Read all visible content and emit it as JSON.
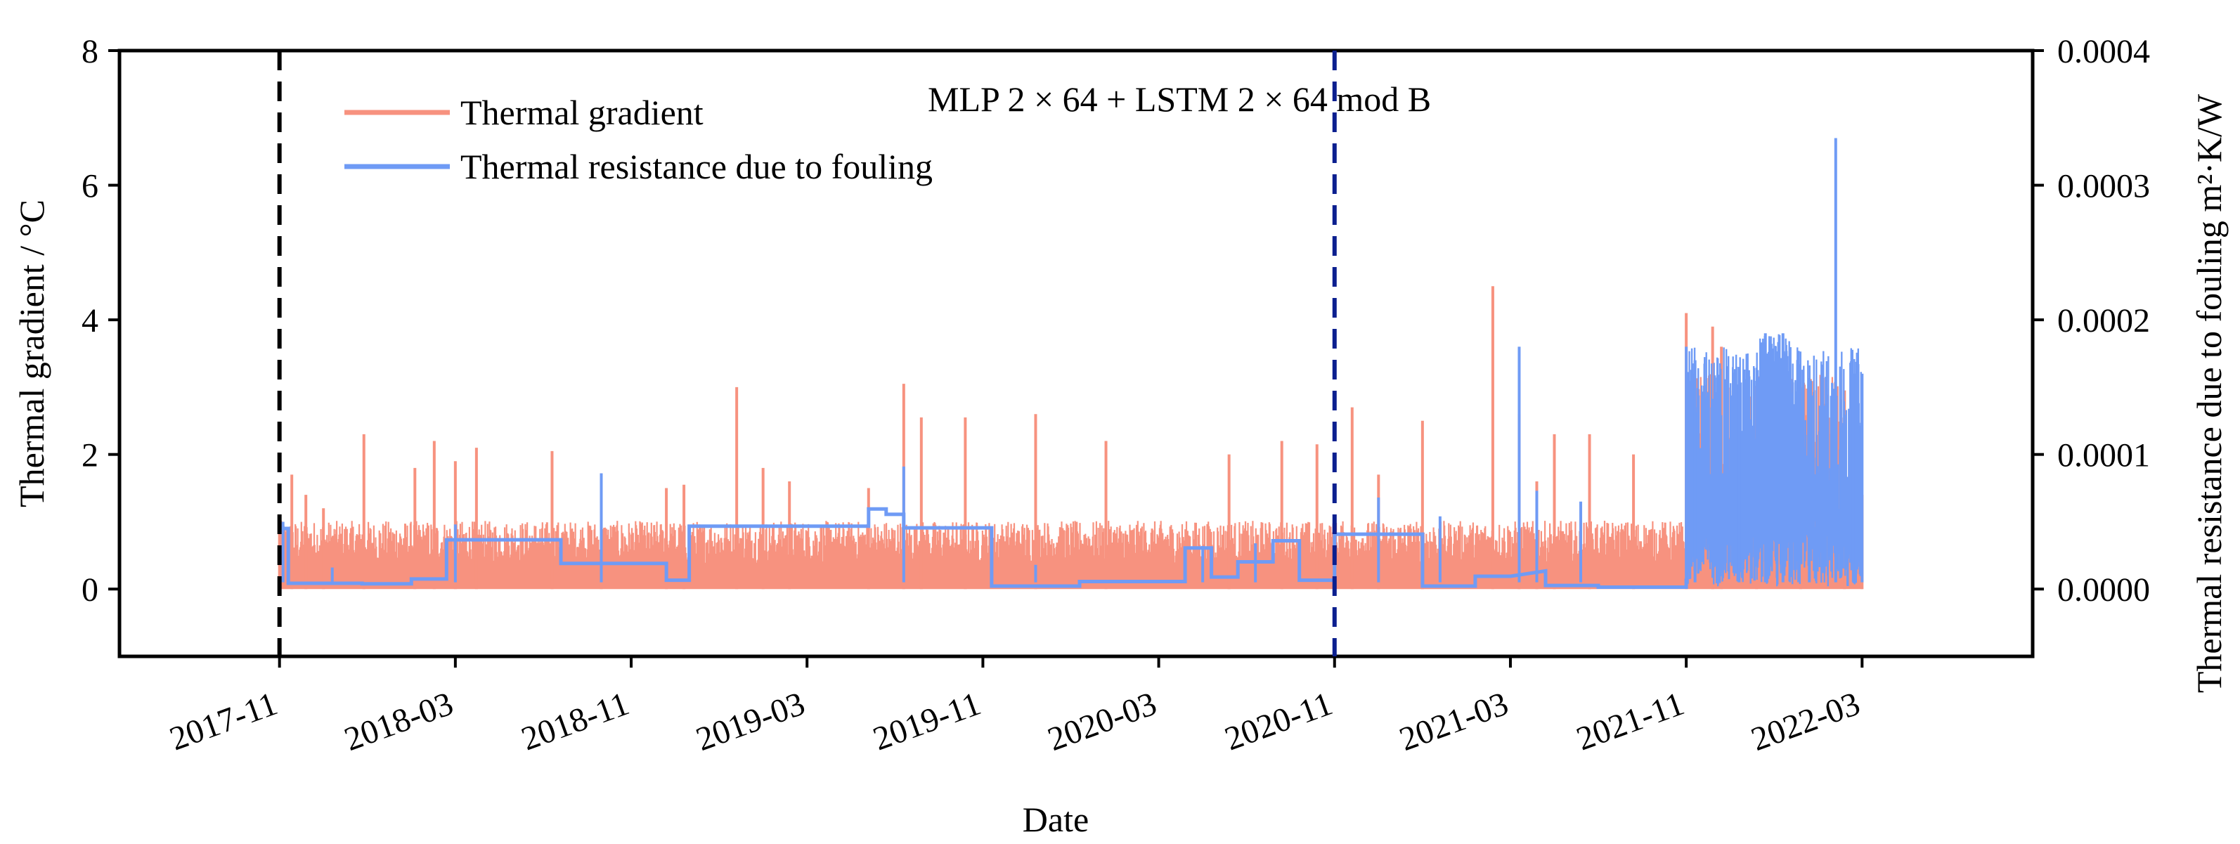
{
  "chart_data": {
    "type": "line",
    "title": "",
    "annotation": "MLP 2 × 64 + LSTM 2 × 64 mod B",
    "xlabel": "Date",
    "ylabel_left": "Thermal gradient / °C",
    "ylabel_right": "Thermal resistance due to fouling m²·K/W",
    "x_ticks": [
      "2017-11",
      "2018-03",
      "2018-11",
      "2019-03",
      "2019-11",
      "2020-03",
      "2020-11",
      "2021-03",
      "2021-11",
      "2022-03"
    ],
    "x_range": [
      -0.91,
      9.97
    ],
    "ylim_left": [
      -1,
      8
    ],
    "ylim_right": [
      -5e-05,
      0.0004
    ],
    "y_ticks_left": [
      "0",
      "2",
      "4",
      "6",
      "8"
    ],
    "y_ticks_right": [
      "0.0000",
      "0.0001",
      "0.0002",
      "0.0003",
      "0.0004"
    ],
    "grid": false,
    "legend_position": "top-left",
    "vertical_lines": [
      {
        "x": 0,
        "style": "dashed",
        "color": "#000000"
      },
      {
        "x": 6.0,
        "style": "dashed",
        "color": "#0b1f8f"
      }
    ],
    "colors": {
      "gradient": "#f7927f",
      "resistance": "#6f9bf5"
    },
    "series": [
      {
        "name": "Thermal gradient",
        "axis": "left",
        "base_level": 0.7,
        "x": [
          0.0,
          0.07,
          0.15,
          0.25,
          0.48,
          0.77,
          0.88,
          1.0,
          1.12,
          1.55,
          1.83,
          2.2,
          2.3,
          2.6,
          2.75,
          2.9,
          3.35,
          3.55,
          3.65,
          3.9,
          4.3,
          4.7,
          5.4,
          5.7,
          5.9,
          6.0,
          6.1,
          6.25,
          6.5,
          6.9,
          7.05,
          7.15,
          7.25,
          7.45,
          7.7,
          8.0,
          8.15,
          8.2,
          8.4,
          8.65,
          8.9,
          9.0
        ],
        "peaks": [
          1.0,
          1.7,
          1.4,
          1.2,
          2.3,
          1.8,
          2.2,
          1.9,
          2.1,
          2.05,
          1.6,
          1.5,
          1.55,
          3.0,
          1.8,
          1.6,
          1.5,
          3.05,
          2.55,
          2.55,
          2.6,
          2.2,
          2.0,
          2.2,
          2.15,
          0.8,
          2.7,
          1.7,
          2.5,
          4.5,
          2.6,
          1.6,
          2.3,
          2.3,
          2.0,
          4.1,
          3.9,
          3.6,
          2.8,
          3.0,
          2.95,
          1.4
        ]
      },
      {
        "name": "Thermal resistance due to fouling",
        "axis": "right",
        "x": [
          0.0,
          0.05,
          0.05,
          0.47,
          0.47,
          0.75,
          0.75,
          0.95,
          0.95,
          1.6,
          1.6,
          2.2,
          2.2,
          2.33,
          2.33,
          3.35,
          3.35,
          3.45,
          3.45,
          3.55,
          3.55,
          4.05,
          4.05,
          4.55,
          4.55,
          5.15,
          5.15,
          5.3,
          5.3,
          5.45,
          5.45,
          5.65,
          5.65,
          5.8,
          5.8,
          6.0,
          6.0,
          6.5,
          6.5,
          6.8,
          6.8,
          7.0,
          7.2,
          7.2,
          7.5,
          7.5,
          8.0,
          8.0
        ],
        "values": [
          4.5e-05,
          4.5e-05,
          4.3e-06,
          4.3e-06,
          3.86e-06,
          3.86e-06,
          7.5e-06,
          7.5e-06,
          3.66e-05,
          3.66e-05,
          1.9e-05,
          1.9e-05,
          6.6e-06,
          6.6e-06,
          4.67e-05,
          4.67e-05,
          5.95e-05,
          5.95e-05,
          5.55e-05,
          5.55e-05,
          4.55e-05,
          4.55e-05,
          2.2e-06,
          2.2e-06,
          5.6e-06,
          5.6e-06,
          3.05e-05,
          3.05e-05,
          8.95e-06,
          8.95e-06,
          2.02e-05,
          2.02e-05,
          3.59e-05,
          3.59e-05,
          6.6e-06,
          6.6e-06,
          4.08e-05,
          4.08e-05,
          2.2e-06,
          2.2e-06,
          9.5e-06,
          9.5e-06,
          1.35e-05,
          2.7e-06,
          2.7e-06,
          1.4e-06,
          1.4e-06,
          7.8e-06
        ],
        "spike_x": [
          0.02,
          0.3,
          1.0,
          1.83,
          3.55,
          4.3,
          5.25,
          5.55,
          6.25,
          6.6,
          7.05,
          7.15,
          7.4,
          8.0,
          8.05,
          8.3,
          8.45,
          8.55,
          8.7,
          8.85,
          8.95,
          9.0
        ],
        "spike_values": [
          5e-05,
          1.6e-05,
          4.8e-05,
          8.6e-05,
          9.1e-05,
          1.8e-05,
          3.2e-05,
          3.4e-05,
          6.8e-05,
          5.4e-05,
          0.00018,
          7.3e-05,
          6.5e-05,
          0.00018,
          0.00017,
          0.000165,
          0.00019,
          0.00019,
          0.00011,
          0.000335,
          0.00016,
          0.00016
        ]
      }
    ]
  }
}
